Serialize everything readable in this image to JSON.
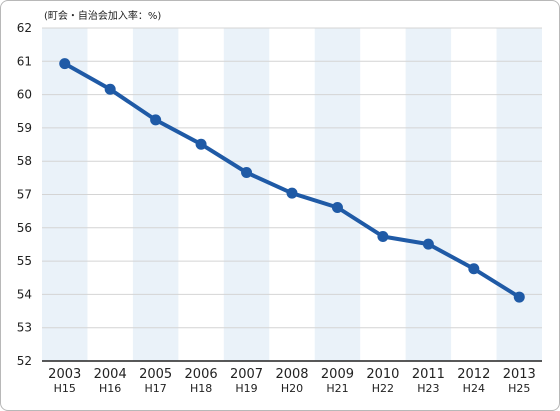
{
  "chart_data": {
    "type": "line",
    "title": "",
    "ylabel": "(町会・自治会加入率：%)",
    "xlabel": "",
    "categories": [
      "2003",
      "2004",
      "2005",
      "2006",
      "2007",
      "2008",
      "2009",
      "2010",
      "2011",
      "2012",
      "2013"
    ],
    "subcategories": [
      "H15",
      "H16",
      "H17",
      "H18",
      "H19",
      "H20",
      "H21",
      "H22",
      "H23",
      "H24",
      "H25"
    ],
    "series": [
      {
        "values": [
          60.93,
          60.16,
          59.24,
          58.51,
          57.66,
          57.04,
          56.61,
          55.74,
          55.51,
          54.77,
          53.92
        ]
      }
    ],
    "ylim": [
      52,
      62
    ],
    "yticks": [
      52,
      53,
      54,
      55,
      56,
      57,
      58,
      59,
      60,
      61,
      62
    ],
    "grid": true,
    "legend": "none",
    "colors": {
      "line": "#1f5aa6",
      "band": "#eaf2f9",
      "grid": "#d4d4d4",
      "axis": "#222222"
    }
  }
}
